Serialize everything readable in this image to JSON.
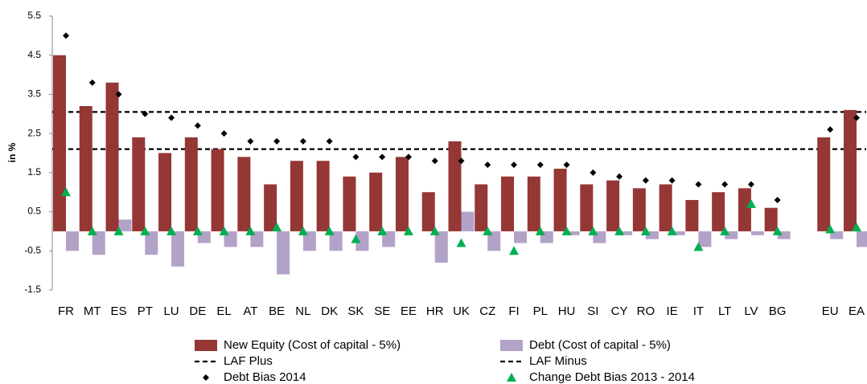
{
  "chart_data": {
    "type": "bar",
    "y_label": "in %",
    "categories": [
      "FR",
      "MT",
      "ES",
      "PT",
      "LU",
      "DE",
      "EL",
      "AT",
      "BE",
      "NL",
      "DK",
      "SK",
      "SE",
      "EE",
      "HR",
      "UK",
      "CZ",
      "FI",
      "PL",
      "HU",
      "SI",
      "CY",
      "RO",
      "IE",
      "IT",
      "LT",
      "LV",
      "BG",
      null,
      "EU",
      "EA"
    ],
    "series": [
      {
        "name": "New Equity (Cost of capital - 5%)",
        "kind": "bar",
        "color": "#953735",
        "values": [
          4.5,
          3.2,
          3.8,
          2.4,
          2.0,
          2.4,
          2.1,
          1.9,
          1.2,
          1.8,
          1.8,
          1.4,
          1.5,
          1.9,
          1.0,
          2.3,
          1.2,
          1.4,
          1.4,
          1.6,
          1.2,
          1.3,
          1.1,
          1.2,
          0.8,
          1.0,
          1.1,
          0.6,
          null,
          2.4,
          3.1
        ]
      },
      {
        "name": "Debt (Cost of capital - 5%)",
        "kind": "bar",
        "color": "#b3a2c7",
        "values": [
          -0.5,
          -0.6,
          0.3,
          -0.6,
          -0.9,
          -0.3,
          -0.4,
          -0.4,
          -1.1,
          -0.5,
          -0.5,
          -0.5,
          -0.4,
          0,
          -0.8,
          0.5,
          -0.5,
          -0.3,
          -0.3,
          -0.1,
          -0.3,
          -0.1,
          -0.2,
          -0.1,
          -0.4,
          -0.2,
          -0.1,
          -0.2,
          null,
          -0.2,
          -0.4
        ]
      },
      {
        "name": "Debt Bias 2014",
        "kind": "diamond",
        "color": "#000000",
        "values": [
          5.0,
          3.8,
          3.5,
          3.0,
          2.9,
          2.7,
          2.5,
          2.3,
          2.3,
          2.3,
          2.3,
          1.9,
          1.9,
          1.9,
          1.8,
          1.8,
          1.7,
          1.7,
          1.7,
          1.7,
          1.5,
          1.4,
          1.3,
          1.3,
          1.2,
          1.2,
          1.2,
          0.8,
          null,
          2.6,
          2.9
        ]
      },
      {
        "name": "Change Debt Bias 2013 - 2014",
        "kind": "triangle",
        "color": "#00b050",
        "values": [
          1.0,
          0,
          0,
          0,
          0,
          0,
          0,
          0,
          0.1,
          0,
          0,
          -0.2,
          0,
          0,
          0,
          -0.3,
          0,
          -0.5,
          0,
          0,
          0,
          0,
          0,
          0,
          -0.4,
          0,
          0.7,
          0,
          null,
          0.05,
          0.1
        ]
      }
    ],
    "reference_lines": [
      {
        "name": "LAF Plus",
        "value": 3.05,
        "color": "#000000",
        "dashed": true
      },
      {
        "name": "LAF Minus",
        "value": 2.1,
        "color": "#000000",
        "dashed": true
      }
    ],
    "ylim": [
      -1.5,
      5.5
    ],
    "yticks": [
      -1.5,
      -0.5,
      0.5,
      1.5,
      2.5,
      3.5,
      4.5,
      5.5
    ],
    "grid": false
  }
}
